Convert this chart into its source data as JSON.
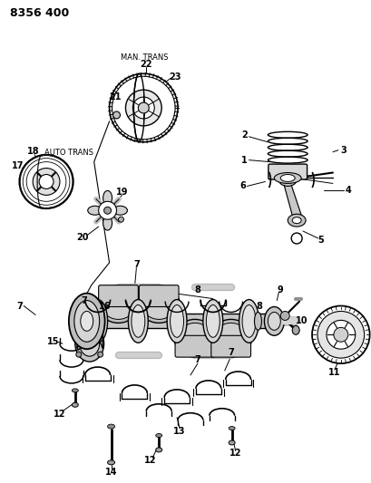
{
  "background_color": "#ffffff",
  "line_color": "#000000",
  "text_color": "#000000",
  "header": "8356 400",
  "label_man_trans": "MAN. TRANS",
  "label_auto_trans": "AUTO TRANS",
  "figsize": [
    4.1,
    5.33
  ],
  "dpi": 100
}
